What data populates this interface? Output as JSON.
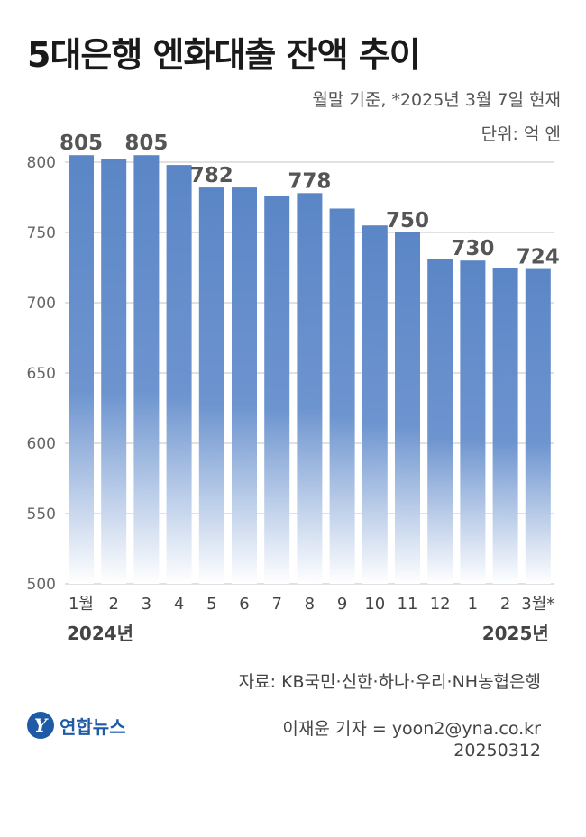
{
  "title": "5대은행 엔화대출 잔액 추이",
  "basis_note": "월말 기준, *2025년 3월 7일 현재",
  "unit_note": "단위: 억 엔",
  "source": "자료: KB국민·신한·하나·우리·NH농협은행",
  "logo_text": "연합뉴스",
  "logo_mark": "Y",
  "reporter": "이재윤 기자 = yoon2@yna.co.kr",
  "date_code": "20250312",
  "colors": {
    "bar": "#5b86c6",
    "bar_fade": "#ffffff",
    "grid": "#cfcfcf"
  },
  "chart_data": {
    "type": "bar",
    "categories": [
      "1월",
      "2",
      "3",
      "4",
      "5",
      "6",
      "7",
      "8",
      "9",
      "10",
      "11",
      "12",
      "1",
      "2",
      "3월*"
    ],
    "values": [
      805,
      802,
      805,
      798,
      782,
      782,
      776,
      778,
      767,
      755,
      750,
      731,
      730,
      725,
      724
    ],
    "data_labels": [
      "805",
      "",
      "805",
      "",
      "782",
      "",
      "",
      "778",
      "",
      "",
      "750",
      "",
      "730",
      "",
      "724"
    ],
    "year_labels": [
      {
        "label": "2024년",
        "align_index": 0,
        "anchor": "start"
      },
      {
        "label": "2025년",
        "align_index": 14,
        "anchor": "end"
      }
    ],
    "yticks": [
      500,
      550,
      600,
      650,
      700,
      750,
      800
    ],
    "ylim": [
      500,
      810
    ],
    "grid": true
  }
}
